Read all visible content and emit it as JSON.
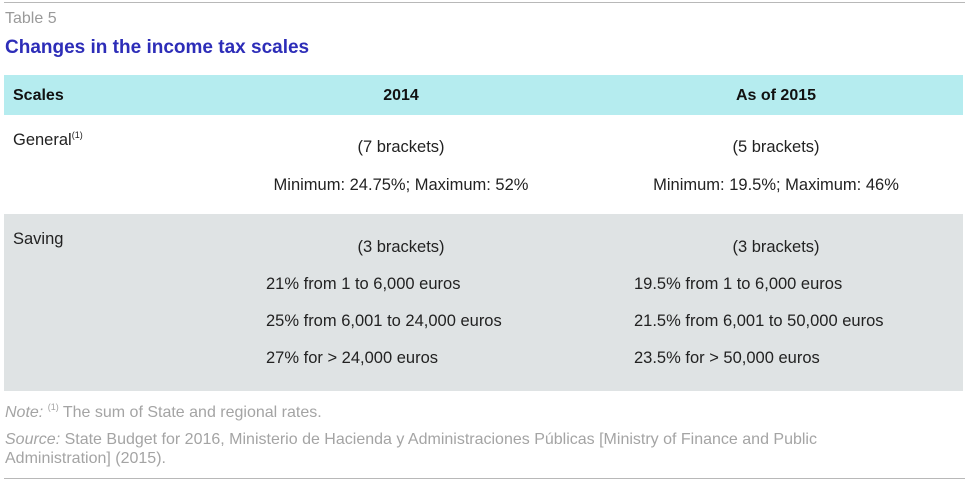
{
  "table_label": "Table 5",
  "title": "Changes in the income tax scales",
  "headers": {
    "scales": "Scales",
    "y2014": "2014",
    "y2015": "As of 2015"
  },
  "rows": {
    "general": {
      "label": "General",
      "label_sup": "(1)",
      "y2014": [
        "(7 brackets)",
        "Minimum: 24.75%; Maximum: 52%"
      ],
      "y2015": [
        "(5 brackets)",
        "Minimum: 19.5%; Maximum: 46%"
      ]
    },
    "saving": {
      "label": "Saving",
      "y2014_brackets": "(3 brackets)",
      "y2015_brackets": "(3 brackets)",
      "y2014": [
        "21% from 1 to 6,000 euros",
        "25% from 6,001 to 24,000 euros",
        "27% for > 24,000 euros"
      ],
      "y2015": [
        "19.5% from 1 to 6,000 euros",
        "21.5% from 6,001 to 50,000 euros",
        "23.5% for > 50,000 euros"
      ]
    }
  },
  "note": {
    "prefix": "Note:",
    "sup": "(1)",
    "text": "The sum of State and regional rates."
  },
  "source": {
    "prefix": "Source:",
    "line1": "State Budget for 2016, Ministerio de Hacienda y Administraciones Públicas [Ministry of Finance and Public",
    "line2": "Administration] (2015)."
  }
}
